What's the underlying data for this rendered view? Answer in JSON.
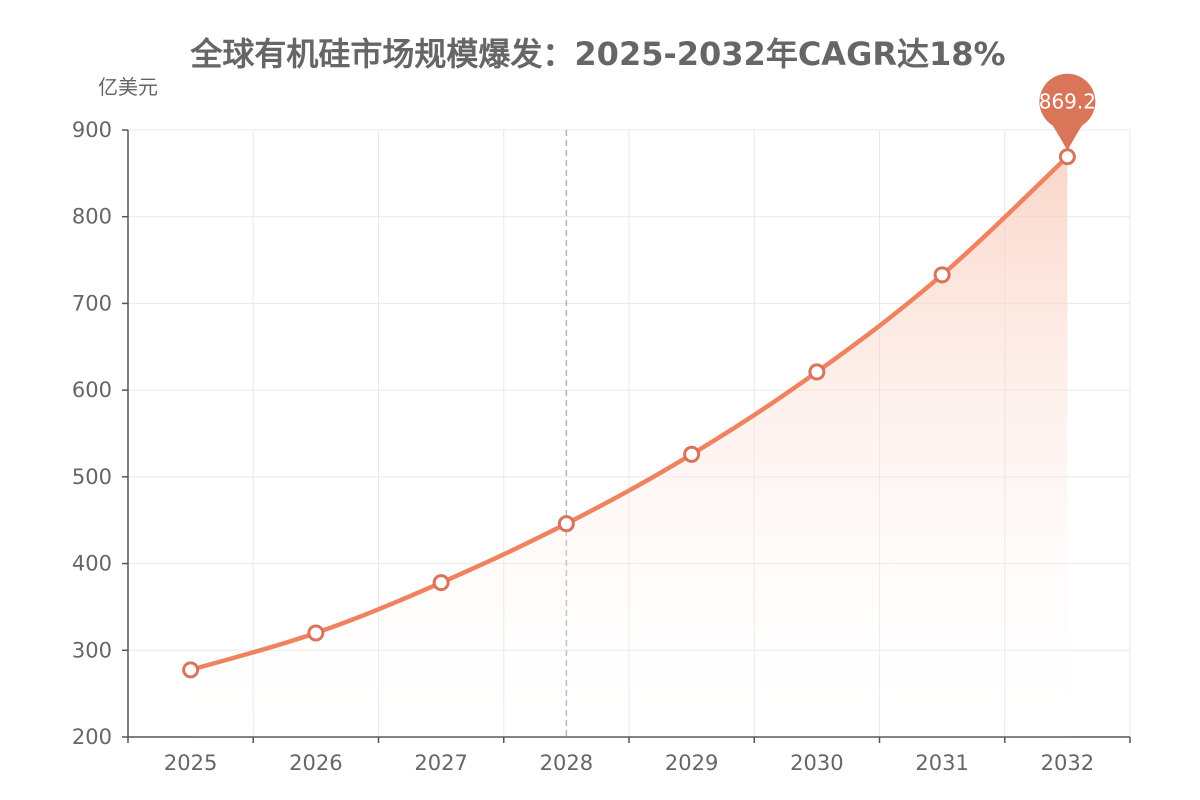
{
  "chart_data": {
    "type": "area",
    "title": "全球有机硅市场规模爆发：2025-2032年CAGR达18%",
    "ylabel": "亿美元",
    "xlabel": "",
    "categories": [
      "2025",
      "2026",
      "2027",
      "2028",
      "2029",
      "2030",
      "2031",
      "2032"
    ],
    "series": [
      {
        "values": [
          277.4,
          320.0,
          378.0,
          446.0,
          526.0,
          621.0,
          733.0,
          869.2
        ]
      }
    ],
    "ylim": [
      200,
      900
    ],
    "yticks": [
      200,
      300,
      400,
      500,
      600,
      700,
      800,
      900
    ],
    "grid": true,
    "highlight_category": "2028",
    "max_marker": {
      "category": "2032",
      "label": "869.2"
    },
    "colors": {
      "line": "#ef8360",
      "marker_stroke": "#d9745a",
      "pin": "#d9765a",
      "area_top": "#f9c9b8",
      "grid": "#e8e8e8",
      "axis": "#555555"
    }
  }
}
